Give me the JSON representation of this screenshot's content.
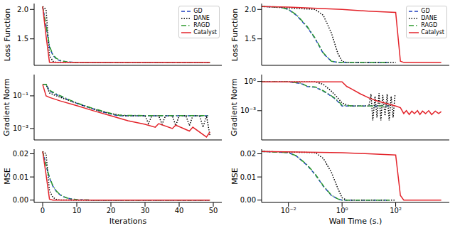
{
  "chart_data": [
    {
      "type": "line",
      "y_label": "Loss Function",
      "tick_labels": "y",
      "legend": "upper right",
      "xlim": [
        -2.5,
        52.5
      ],
      "xticks": [
        0,
        10,
        20,
        30,
        40,
        50
      ],
      "ylim": [
        1.05,
        2.1
      ],
      "yticks": [
        1.5,
        {
          "value": 2,
          "label": "2.0"
        }
      ],
      "series": [
        {
          "name": "GD",
          "color": "#1f3fbf",
          "line_style": "dashed",
          "x": [
            0,
            1,
            2,
            3,
            4,
            5,
            6,
            7,
            8,
            10,
            15,
            20,
            30,
            40,
            49
          ],
          "values": [
            2.05,
            1.72,
            1.36,
            1.22,
            1.16,
            1.13,
            1.12,
            1.11,
            1.105,
            1.1,
            1.1,
            1.1,
            1.1,
            1.1,
            1.1
          ]
        },
        {
          "name": "DANE",
          "color": "#000000",
          "line_style": "dotted",
          "x": [
            0,
            1,
            2,
            3,
            4,
            5,
            10,
            20,
            30,
            40,
            49
          ],
          "values": [
            2.05,
            2.0,
            1.22,
            1.12,
            1.1,
            1.1,
            1.1,
            1.1,
            1.1,
            1.1,
            1.1
          ]
        },
        {
          "name": "RAGD",
          "color": "#2e9a2e",
          "line_style": "dashdot",
          "x": [
            0,
            1,
            2,
            3,
            4,
            5,
            6,
            7,
            8,
            10,
            15,
            20,
            30,
            40,
            49
          ],
          "values": [
            2.05,
            1.73,
            1.38,
            1.23,
            1.17,
            1.14,
            1.12,
            1.11,
            1.105,
            1.1,
            1.1,
            1.1,
            1.1,
            1.1,
            1.1
          ]
        },
        {
          "name": "Catalyst",
          "color": "#e3242b",
          "line_style": "solid",
          "x": [
            0,
            1,
            2,
            3,
            5,
            10,
            20,
            30,
            40,
            49
          ],
          "values": [
            2.05,
            1.55,
            1.1,
            1.1,
            1.1,
            1.1,
            1.1,
            1.1,
            1.1,
            1.1
          ]
        }
      ]
    },
    {
      "type": "line",
      "y_label": "Gradient Norm",
      "tick_labels": "y",
      "log": "y",
      "xlim": [
        -2.5,
        52.5
      ],
      "xticks": [
        0,
        10,
        20,
        30,
        40,
        50
      ],
      "ylim": [
        0.0002,
        2
      ],
      "yticks": [
        {
          "value": 0.001,
          "label": "10⁻³"
        },
        {
          "value": 0.1,
          "label": "10⁻¹"
        }
      ],
      "series": [
        {
          "name": "GD",
          "color": "#1f3fbf",
          "line_style": "dashed",
          "x": [
            0,
            1,
            2,
            4,
            6,
            8,
            10,
            14,
            18,
            22,
            30,
            40,
            49
          ],
          "values": [
            0.5,
            0.5,
            0.2,
            0.12,
            0.08,
            0.05,
            0.035,
            0.018,
            0.01,
            0.006,
            0.006,
            0.006,
            0.006
          ]
        },
        {
          "name": "DANE",
          "color": "#000000",
          "line_style": "dotted",
          "x": [
            0,
            1,
            2,
            4,
            8,
            12,
            16,
            20,
            24,
            28,
            30,
            31,
            32,
            34,
            35,
            36,
            38,
            39,
            40,
            42,
            43,
            44,
            46,
            47,
            48,
            49
          ],
          "values": [
            0.5,
            0.5,
            0.15,
            0.1,
            0.05,
            0.025,
            0.013,
            0.008,
            0.006,
            0.006,
            0.006,
            0.002,
            0.006,
            0.006,
            0.0018,
            0.006,
            0.006,
            0.0015,
            0.006,
            0.006,
            0.0015,
            0.006,
            0.006,
            0.0012,
            0.006,
            0.0004
          ]
        },
        {
          "name": "RAGD",
          "color": "#2e9a2e",
          "line_style": "dashdot",
          "x": [
            0,
            1,
            2,
            4,
            6,
            8,
            10,
            14,
            18,
            22,
            30,
            40,
            49
          ],
          "values": [
            0.5,
            0.5,
            0.22,
            0.13,
            0.085,
            0.055,
            0.037,
            0.019,
            0.011,
            0.0065,
            0.0062,
            0.0062,
            0.0062
          ]
        },
        {
          "name": "Catalyst",
          "color": "#e3242b",
          "line_style": "solid",
          "x": [
            0,
            1,
            2,
            5,
            10,
            15,
            20,
            25,
            30,
            33,
            34,
            38,
            39,
            43,
            44,
            48,
            49
          ],
          "values": [
            0.5,
            0.1,
            0.08,
            0.05,
            0.025,
            0.012,
            0.006,
            0.003,
            0.0018,
            0.0012,
            0.002,
            0.001,
            0.0016,
            0.0007,
            0.0012,
            0.0003,
            0.0006
          ]
        }
      ]
    },
    {
      "type": "line",
      "y_label": "MSE",
      "x_label": "Iterations",
      "xlim": [
        -2.5,
        52.5
      ],
      "xticks": [
        0,
        10,
        20,
        30,
        40,
        50
      ],
      "ylim": [
        -0.001,
        0.022
      ],
      "yticks": [
        {
          "value": 0,
          "label": "0.00"
        },
        {
          "value": 0.01,
          "label": "0.01"
        },
        {
          "value": 0.02,
          "label": "0.02"
        }
      ],
      "series": [
        {
          "name": "GD",
          "color": "#1f3fbf",
          "line_style": "dashed",
          "x": [
            0,
            1,
            2,
            3,
            4,
            5,
            6,
            7,
            8,
            10,
            15,
            20,
            30,
            40,
            49
          ],
          "values": [
            0.021,
            0.015,
            0.0095,
            0.006,
            0.0038,
            0.0024,
            0.0015,
            0.001,
            0.0006,
            0.0002,
            0,
            0,
            0,
            0,
            0
          ]
        },
        {
          "name": "DANE",
          "color": "#000000",
          "line_style": "dotted",
          "x": [
            0,
            1,
            2,
            3,
            4,
            5,
            10,
            20,
            30,
            40,
            49
          ],
          "values": [
            0.021,
            0.02,
            0.004,
            0.0012,
            0.0003,
            0.0001,
            0,
            0,
            0,
            0,
            0
          ]
        },
        {
          "name": "RAGD",
          "color": "#2e9a2e",
          "line_style": "dashdot",
          "x": [
            0,
            1,
            2,
            3,
            4,
            5,
            6,
            7,
            8,
            10,
            15,
            20,
            30,
            40,
            49
          ],
          "values": [
            0.021,
            0.0152,
            0.0098,
            0.0062,
            0.004,
            0.0025,
            0.0016,
            0.001,
            0.0006,
            0.0002,
            0,
            0,
            0,
            0,
            0
          ]
        },
        {
          "name": "Catalyst",
          "color": "#e3242b",
          "line_style": "solid",
          "x": [
            0,
            1,
            2,
            3,
            5,
            10,
            20,
            30,
            40,
            49
          ],
          "values": [
            0.021,
            0.011,
            0.0004,
            0,
            0,
            0,
            0,
            0,
            0,
            0
          ]
        }
      ]
    },
    {
      "type": "line",
      "y_label": "Loss Function",
      "tick_labels": "y",
      "legend": "upper right",
      "log": "x",
      "xlim": [
        0.001,
        10000
      ],
      "xticks": [
        {
          "value": 0.01,
          "label": "10⁻²"
        },
        {
          "value": 1,
          "label": "10⁰"
        },
        {
          "value": 100,
          "label": "10²"
        }
      ],
      "ylim": [
        1.05,
        2.1
      ],
      "yticks": [
        1.5,
        {
          "value": 2,
          "label": "2.0"
        }
      ],
      "series": [
        {
          "name": "GD",
          "color": "#1f3fbf",
          "line_style": "dashed",
          "x": [
            0.001,
            0.005,
            0.01,
            0.02,
            0.05,
            0.1,
            0.2,
            0.4,
            0.7,
            1,
            10,
            60
          ],
          "values": [
            2.05,
            2.04,
            2.0,
            1.9,
            1.7,
            1.5,
            1.25,
            1.12,
            1.1,
            1.1,
            1.1,
            1.1
          ]
        },
        {
          "name": "DANE",
          "color": "#000000",
          "line_style": "dotted",
          "x": [
            0.001,
            0.1,
            0.2,
            0.4,
            0.7,
            1,
            1.5,
            10,
            100
          ],
          "values": [
            2.05,
            2.0,
            1.9,
            1.6,
            1.25,
            1.12,
            1.1,
            1.1,
            1.1
          ]
        },
        {
          "name": "RAGD",
          "color": "#2e9a2e",
          "line_style": "dashdot",
          "x": [
            0.001,
            0.005,
            0.01,
            0.02,
            0.05,
            0.1,
            0.2,
            0.4,
            0.7,
            1,
            10,
            60
          ],
          "values": [
            2.05,
            2.04,
            2.0,
            1.91,
            1.71,
            1.51,
            1.26,
            1.12,
            1.1,
            1.1,
            1.1,
            1.1
          ]
        },
        {
          "name": "Catalyst",
          "color": "#e3242b",
          "line_style": "solid",
          "x": [
            0.001,
            0.01,
            1,
            10,
            100,
            150,
            200,
            1000,
            5000
          ],
          "values": [
            2.05,
            2.04,
            2.0,
            1.97,
            1.95,
            1.12,
            1.1,
            1.1,
            1.1
          ]
        }
      ]
    },
    {
      "type": "line",
      "y_label": "Gradient Norm",
      "tick_labels": "y",
      "log": true,
      "xlim": [
        0.001,
        10000
      ],
      "xticks": [
        {
          "value": 0.01,
          "label": "10⁻²"
        },
        {
          "value": 1,
          "label": "10⁰"
        },
        {
          "value": 100,
          "label": "10²"
        }
      ],
      "ylim": [
        1e-06,
        5
      ],
      "yticks": [
        {
          "value": 0.001,
          "label": "10⁻³"
        },
        {
          "value": 1,
          "label": "10⁰"
        }
      ],
      "series": [
        {
          "name": "GD",
          "color": "#1f3fbf",
          "line_style": "dashed",
          "x": [
            0.001,
            0.01,
            0.03,
            0.05,
            0.1,
            0.2,
            0.3,
            0.5,
            0.8,
            1,
            3,
            10,
            60
          ],
          "values": [
            0.9,
            0.9,
            0.6,
            0.3,
            0.25,
            0.1,
            0.05,
            0.02,
            0.006,
            0.003,
            0.003,
            0.003,
            0.003
          ]
        },
        {
          "name": "DANE",
          "color": "#000000",
          "line_style": "dotted",
          "x": [
            0.001,
            0.1,
            0.2,
            0.4,
            0.7,
            1,
            2,
            5,
            10,
            12,
            14,
            17,
            20,
            24,
            28,
            33,
            40,
            48,
            57,
            68,
            80,
            95
          ],
          "values": [
            0.9,
            0.9,
            0.5,
            0.1,
            0.02,
            0.006,
            0.003,
            0.003,
            0.003,
            0.05,
            0.0001,
            0.03,
            0.0002,
            0.06,
            0.0001,
            0.04,
            0.0003,
            0.05,
            0.0001,
            0.03,
            0.0002,
            0.05
          ]
        },
        {
          "name": "RAGD",
          "color": "#2e9a2e",
          "line_style": "dashdot",
          "x": [
            0.001,
            0.01,
            0.03,
            0.05,
            0.1,
            0.2,
            0.3,
            0.5,
            0.8,
            1,
            3,
            10,
            60
          ],
          "values": [
            0.9,
            0.9,
            0.65,
            0.32,
            0.27,
            0.11,
            0.055,
            0.022,
            0.007,
            0.0035,
            0.003,
            0.003,
            0.003
          ]
        },
        {
          "name": "Catalyst",
          "color": "#e3242b",
          "line_style": "solid",
          "x": [
            0.001,
            1,
            1.5,
            2,
            5,
            10,
            20,
            50,
            100,
            150,
            200,
            250,
            320,
            400,
            500,
            650,
            800,
            1000,
            1300,
            1700,
            2200,
            3000,
            4000,
            5000
          ],
          "values": [
            0.9,
            0.9,
            0.3,
            0.2,
            0.05,
            0.02,
            0.01,
            0.005,
            0.003,
            0.002,
            0.0005,
            0.001,
            0.0004,
            0.0009,
            0.0005,
            0.001,
            0.0004,
            0.0009,
            0.0005,
            0.001,
            0.0004,
            0.0009,
            0.0005,
            0.0008
          ]
        }
      ]
    },
    {
      "type": "line",
      "y_label": "MSE",
      "x_label": "Wall Time (s.)",
      "log": "x",
      "xlim": [
        0.001,
        10000
      ],
      "xticks": [
        {
          "value": 0.01,
          "label": "10⁻²"
        },
        {
          "value": 1,
          "label": "10⁰"
        },
        {
          "value": 100,
          "label": "10²"
        }
      ],
      "ylim": [
        -0.001,
        0.022
      ],
      "yticks": [
        {
          "value": 0,
          "label": "0.00"
        },
        {
          "value": 0.01,
          "label": "0.01"
        },
        {
          "value": 0.02,
          "label": "0.02"
        }
      ],
      "series": [
        {
          "name": "GD",
          "color": "#1f3fbf",
          "line_style": "dashed",
          "x": [
            0.001,
            0.01,
            0.02,
            0.05,
            0.1,
            0.2,
            0.4,
            0.7,
            1,
            60
          ],
          "values": [
            0.021,
            0.0205,
            0.019,
            0.015,
            0.011,
            0.006,
            0.002,
            0.0005,
            0,
            0
          ]
        },
        {
          "name": "DANE",
          "color": "#000000",
          "line_style": "dotted",
          "x": [
            0.001,
            0.1,
            0.2,
            0.4,
            0.7,
            1,
            1.5,
            100
          ],
          "values": [
            0.021,
            0.0205,
            0.018,
            0.012,
            0.005,
            0.001,
            0,
            0
          ]
        },
        {
          "name": "RAGD",
          "color": "#2e9a2e",
          "line_style": "dashdot",
          "x": [
            0.001,
            0.01,
            0.02,
            0.05,
            0.1,
            0.2,
            0.4,
            0.7,
            1,
            60
          ],
          "values": [
            0.021,
            0.0205,
            0.0191,
            0.0152,
            0.0112,
            0.0062,
            0.0021,
            0.0005,
            0,
            0
          ]
        },
        {
          "name": "Catalyst",
          "color": "#e3242b",
          "line_style": "solid",
          "x": [
            0.001,
            1,
            100,
            150,
            200,
            5000
          ],
          "values": [
            0.021,
            0.0205,
            0.0195,
            0.002,
            0,
            0
          ]
        }
      ]
    }
  ]
}
